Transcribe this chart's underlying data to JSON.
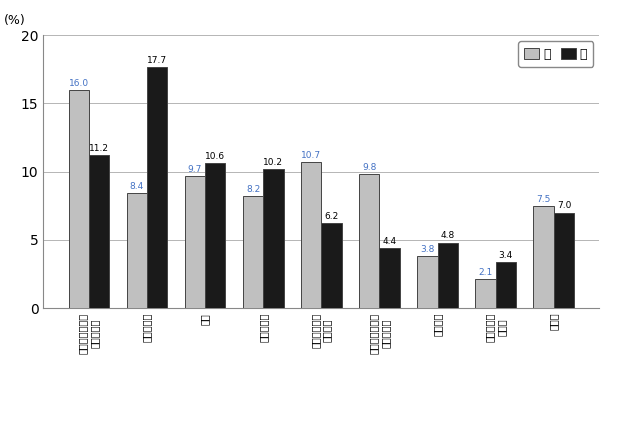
{
  "title": "",
  "ylabel": "(%)",
  "ylim": [
    0,
    20
  ],
  "yticks": [
    0,
    5,
    10,
    15,
    20
  ],
  "categories": [
    "パソコンなどの\n情報処理・",
    "家政・家事",
    "英語",
    "芸術・文化",
    "人文・社会・\n自然科学",
    "ビジネス関係・\n商業実務・",
    "介護関係",
    "英語以外の\n外国語",
    "その他"
  ],
  "male_values": [
    16.0,
    8.4,
    9.7,
    8.2,
    10.7,
    9.8,
    3.8,
    2.1,
    7.5
  ],
  "female_values": [
    11.2,
    17.7,
    10.6,
    10.2,
    6.2,
    4.4,
    4.8,
    3.4,
    7.0
  ],
  "male_color": "#c0c0c0",
  "female_color": "#1a1a1a",
  "male_label": "男",
  "female_label": "女",
  "bar_width": 0.35,
  "value_color_male": "#4472c4",
  "value_color_female": "#000000",
  "background_color": "#ffffff"
}
